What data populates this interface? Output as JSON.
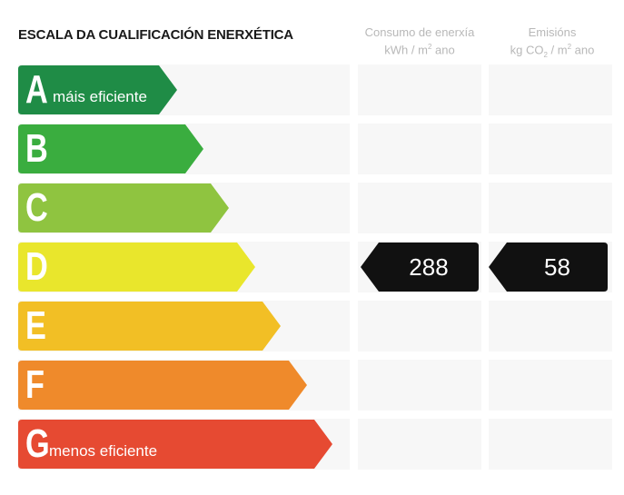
{
  "header": {
    "title": "ESCALA DA CUALIFICACIÓN ENERXÉTICA",
    "col1_line1": "Consumo de enerxía",
    "col1_line2_pre": "kWh / m",
    "col1_line2_sup": "2",
    "col1_line2_post": " ano",
    "col2_line1": "Emisións",
    "col2_line2_pre": "kg CO",
    "col2_line2_sub": "2",
    "col2_line2_mid": " / m",
    "col2_line2_sup": "2",
    "col2_line2_post": " ano"
  },
  "ratings": [
    {
      "letter": "A",
      "sublabel": "máis eficiente",
      "color": "#1f8c46"
    },
    {
      "letter": "B",
      "sublabel": "",
      "color": "#3aad3f"
    },
    {
      "letter": "C",
      "sublabel": "",
      "color": "#8fc440"
    },
    {
      "letter": "D",
      "sublabel": "",
      "color": "#e9e62c"
    },
    {
      "letter": "E",
      "sublabel": "",
      "color": "#f2bf25"
    },
    {
      "letter": "F",
      "sublabel": "",
      "color": "#ef8a2b"
    },
    {
      "letter": "G",
      "sublabel": "menos eficiente",
      "color": "#e64a32"
    }
  ],
  "result": {
    "rating": "D",
    "consumption": "288",
    "emissions": "58",
    "marker_color": "#111111"
  }
}
